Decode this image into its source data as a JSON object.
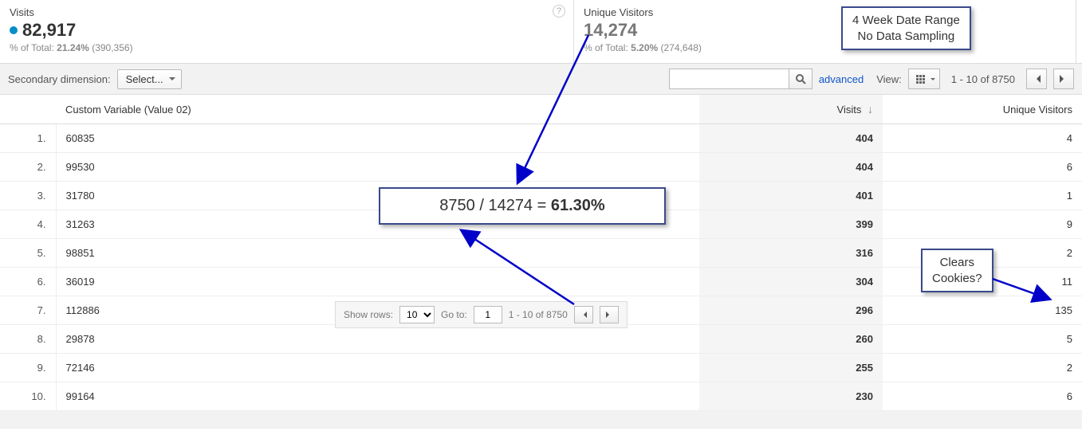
{
  "summary": {
    "visits": {
      "label": "Visits",
      "value": "82,917",
      "pct": "21.24%",
      "total": "390,356",
      "dot_color": "#058dc7"
    },
    "uv": {
      "label": "Unique Visitors",
      "value": "14,274",
      "pct": "5.20%",
      "total": "274,648"
    },
    "sub_prefix": "% of Total:"
  },
  "toolbar": {
    "secondary_dim_label": "Secondary dimension:",
    "select_label": "Select...",
    "advanced_label": "advanced",
    "view_label": "View:",
    "range_text": "1 - 10 of 8750",
    "search_placeholder": ""
  },
  "table": {
    "columns": {
      "cv": "Custom Variable (Value 02)",
      "visits": "Visits",
      "uv": "Unique Visitors"
    },
    "rows": [
      {
        "n": "1.",
        "cv": "60835",
        "visits": "404",
        "uv": "4"
      },
      {
        "n": "2.",
        "cv": "99530",
        "visits": "404",
        "uv": "6"
      },
      {
        "n": "3.",
        "cv": "31780",
        "visits": "401",
        "uv": "1"
      },
      {
        "n": "4.",
        "cv": "31263",
        "visits": "399",
        "uv": "9"
      },
      {
        "n": "5.",
        "cv": "98851",
        "visits": "316",
        "uv": "2"
      },
      {
        "n": "6.",
        "cv": "36019",
        "visits": "304",
        "uv": "11"
      },
      {
        "n": "7.",
        "cv": "112886",
        "visits": "296",
        "uv": "135"
      },
      {
        "n": "8.",
        "cv": "29878",
        "visits": "260",
        "uv": "5"
      },
      {
        "n": "9.",
        "cv": "72146",
        "visits": "255",
        "uv": "2"
      },
      {
        "n": "10.",
        "cv": "99164",
        "visits": "230",
        "uv": "6"
      }
    ]
  },
  "bottom_pager": {
    "show_rows_label": "Show rows:",
    "rows_value": "10",
    "goto_label": "Go to:",
    "goto_value": "1",
    "range_text": "1 - 10 of 8750"
  },
  "annotations": {
    "main_calc_prefix": "8750 / 14274 = ",
    "main_calc_pct": "61.30%",
    "date_range_line1": "4 Week Date Range",
    "date_range_line2": "No Data Sampling",
    "cookies_line1": "Clears",
    "cookies_line2": "Cookies?",
    "arrow_color": "#0000c8",
    "border_color": "#3b4a8a"
  }
}
